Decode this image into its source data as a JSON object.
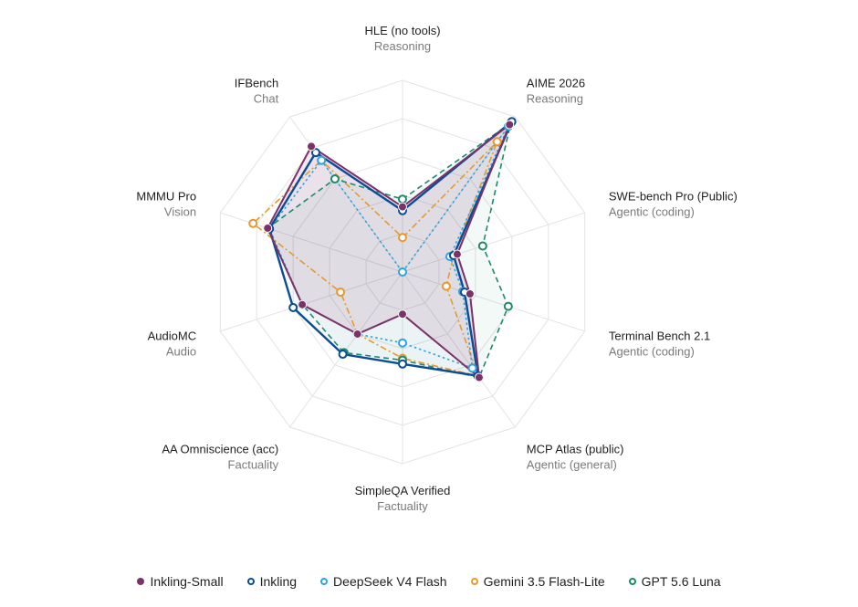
{
  "chart_data": {
    "type": "radar",
    "axes": [
      {
        "name": "HLE (no tools)",
        "category": "Reasoning"
      },
      {
        "name": "AIME 2026",
        "category": "Reasoning"
      },
      {
        "name": "SWE-bench Pro (Public)",
        "category": "Agentic (coding)"
      },
      {
        "name": "Terminal Bench 2.1",
        "category": "Agentic (coding)"
      },
      {
        "name": "MCP Atlas (public)",
        "category": "Agentic (general)"
      },
      {
        "name": "SimpleQA Verified",
        "category": "Factuality"
      },
      {
        "name": "AA Omniscience (acc)",
        "category": "Factuality"
      },
      {
        "name": "AudioMC",
        "category": "Audio"
      },
      {
        "name": "MMMU Pro",
        "category": "Vision"
      },
      {
        "name": "IFBench",
        "category": "Chat"
      }
    ],
    "rlim": [
      0,
      1
    ],
    "rings": 5,
    "grid": true,
    "legend_position": "bottom",
    "series": [
      {
        "name": "Inkling-Small",
        "color": "#7b3268",
        "marker": "filled",
        "dash": "solid",
        "width": 2,
        "fill": "#8a3a70",
        "fill_opacity": 0.12,
        "values": [
          0.34,
          0.95,
          0.3,
          0.37,
          0.68,
          0.22,
          0.4,
          0.55,
          0.74,
          0.81
        ]
      },
      {
        "name": "Inkling",
        "color": "#0b4c96",
        "marker": "open",
        "dash": "solid",
        "width": 2.4,
        "fill": "#0b4c96",
        "fill_opacity": 0.03,
        "values": [
          0.32,
          0.97,
          0.28,
          0.34,
          0.67,
          0.48,
          0.53,
          0.6,
          0.73,
          0.77
        ]
      },
      {
        "name": "DeepSeek V4 Flash",
        "color": "#2fa3e0",
        "marker": "open",
        "dash": "dotted",
        "width": 1.6,
        "fill": "none",
        "fill_opacity": 0,
        "values": [
          0.0,
          0.94,
          0.26,
          0.33,
          0.62,
          0.37,
          0.4,
          0.55,
          0.73,
          0.72
        ]
      },
      {
        "name": "Gemini 3.5 Flash-Lite",
        "color": "#e69a2e",
        "marker": "open",
        "dash": "dashdot",
        "width": 1.6,
        "fill": "none",
        "fill_opacity": 0,
        "values": [
          0.18,
          0.84,
          0.28,
          0.24,
          0.67,
          0.45,
          0.4,
          0.34,
          0.82,
          0.72
        ]
      },
      {
        "name": "GPT 5.6 Luna",
        "color": "#1d8a6a",
        "marker": "open",
        "dash": "dashed",
        "width": 1.6,
        "fill": "#1d8a6a",
        "fill_opacity": 0.05,
        "values": [
          0.38,
          0.96,
          0.44,
          0.58,
          0.68,
          0.46,
          0.52,
          0.55,
          0.74,
          0.6
        ]
      }
    ]
  }
}
